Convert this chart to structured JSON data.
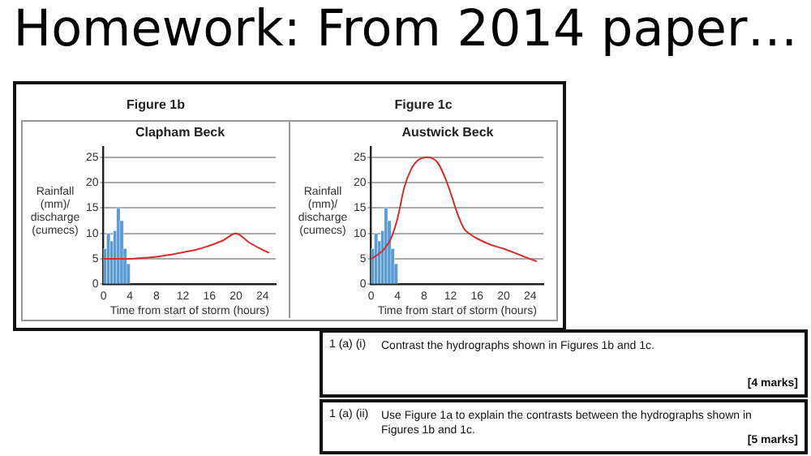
{
  "chart_data": [
    {
      "type": "bar",
      "title": "Figure 1b",
      "subtitle": "Clapham Beck",
      "xlabel": "Time from start of storm (hours)",
      "ylabel": "Rainfall (mm)/ discharge (cumecs)",
      "xlim": [
        0,
        26
      ],
      "ylim": [
        0,
        27
      ],
      "xticks": [
        0,
        4,
        8,
        12,
        16,
        20,
        24
      ],
      "yticks": [
        0,
        5,
        10,
        15,
        20,
        25
      ],
      "grid": "y",
      "series": [
        {
          "type": "bar",
          "color": "#5b9bd5",
          "x": [
            0.25,
            0.75,
            1.25,
            1.75,
            2.25,
            2.75,
            3.25,
            3.75
          ],
          "values": [
            7,
            10,
            8.5,
            10.5,
            15,
            12.5,
            7,
            4
          ]
        },
        {
          "type": "line",
          "color": "#d62d2d",
          "x": [
            0,
            4,
            6,
            8,
            10,
            12,
            14,
            16,
            18,
            20,
            22,
            24,
            25
          ],
          "values": [
            5,
            5,
            5.2,
            5.4,
            5.8,
            6.3,
            6.8,
            7.6,
            8.6,
            10,
            8.2,
            6.8,
            6.2
          ]
        }
      ]
    },
    {
      "type": "bar",
      "title": "Figure 1c",
      "subtitle": "Austwick Beck",
      "xlabel": "Time from start of storm (hours)",
      "ylabel": "Rainfall (mm)/ discharge (cumecs)",
      "xlim": [
        0,
        26
      ],
      "ylim": [
        0,
        27
      ],
      "xticks": [
        0,
        4,
        8,
        12,
        16,
        20,
        24
      ],
      "yticks": [
        0,
        5,
        10,
        15,
        20,
        25
      ],
      "grid": "y",
      "series": [
        {
          "type": "bar",
          "color": "#5b9bd5",
          "x": [
            0.25,
            0.75,
            1.25,
            1.75,
            2.25,
            2.75,
            3.25,
            3.75
          ],
          "values": [
            7,
            10,
            8.5,
            10.5,
            15,
            12.5,
            7,
            4
          ]
        },
        {
          "type": "line",
          "color": "#d62d2d",
          "x": [
            0,
            1,
            2,
            3,
            4,
            5,
            6,
            7,
            8.5,
            10,
            11,
            12,
            13,
            14,
            15,
            16,
            18,
            20,
            22,
            24,
            25
          ],
          "values": [
            5,
            5.8,
            7,
            9,
            13,
            19,
            22.5,
            24.3,
            25,
            24,
            21.5,
            18,
            14,
            11,
            9.8,
            9,
            7.8,
            7,
            6,
            5,
            4.5
          ]
        }
      ]
    },
    {
      "type": "other",
      "title": "Homework: From 2014 paper…",
      "annotations": [
        "1 (a) (i)",
        "Contrast the hydrographs shown in Figures 1b and 1c.",
        "[4 marks]",
        "1 (a) (ii)",
        "Use Figure 1a to explain the contrasts between the hydrographs shown in Figures 1b and 1c.",
        "[5 marks]"
      ]
    }
  ]
}
